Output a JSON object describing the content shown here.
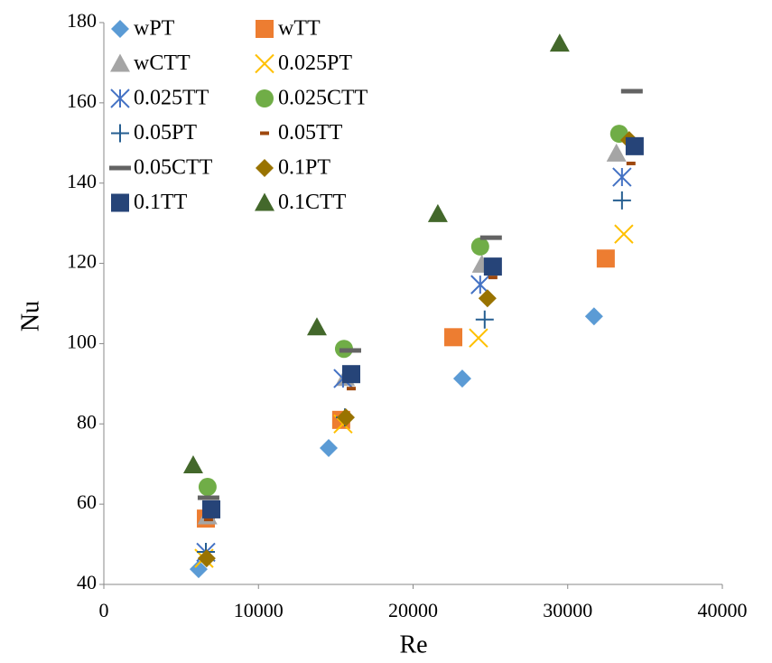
{
  "chart_data": {
    "type": "scatter",
    "x_label": "Re",
    "y_label": "Nu",
    "xlim": [
      0,
      40000
    ],
    "xticks": [
      0,
      10000,
      20000,
      30000,
      40000
    ],
    "ylim": [
      40,
      180
    ],
    "yticks": [
      40,
      60,
      80,
      100,
      120,
      140,
      160,
      180
    ],
    "grid": false,
    "legend": "upper left",
    "series": [
      {
        "name": "wPT",
        "color": "#5B9BD5",
        "marker": "diamond",
        "x": [
          6130,
          14540,
          23180,
          31700
        ],
        "values": [
          43.8,
          74,
          91.3,
          106.8
        ]
      },
      {
        "name": "wTT",
        "color": "#ED7D31",
        "marker": "square",
        "x": [
          6600,
          15350,
          22600,
          32460
        ],
        "values": [
          56.4,
          81,
          101.6,
          121.2
        ]
      },
      {
        "name": "wCTT",
        "color": "#A5A5A5",
        "marker": "triangle",
        "x": [
          6700,
          15600,
          24450,
          33150
        ],
        "values": [
          57,
          91.5,
          119.7,
          147.4
        ]
      },
      {
        "name": "0.025PT",
        "color": "#FFC000",
        "marker": "x",
        "x": [
          6480,
          15470,
          24230,
          33630
        ],
        "values": [
          46.5,
          80,
          101.4,
          127.3
        ]
      },
      {
        "name": "0.025TT",
        "color": "#4472C4",
        "marker": "asterisk",
        "x": [
          6600,
          15470,
          24340,
          33510
        ],
        "values": [
          48,
          91.3,
          114.7,
          141.5
        ]
      },
      {
        "name": "0.025CTT",
        "color": "#70AD47",
        "marker": "circle",
        "x": [
          6710,
          15530,
          24340,
          33330
        ],
        "values": [
          64.3,
          98.7,
          124.2,
          152.3
        ]
      },
      {
        "name": "0.05PT",
        "color": "#255E91",
        "marker": "plus",
        "x": [
          6600,
          15590,
          24630,
          33510
        ],
        "values": [
          48.1,
          81.6,
          106,
          135.7
        ]
      },
      {
        "name": "0.05TT",
        "color": "#9E480E",
        "marker": "dash-small",
        "x": [
          6770,
          16000,
          25160,
          34090
        ],
        "values": [
          56.2,
          88.8,
          116.5,
          144.9
        ]
      },
      {
        "name": "0.05CTT",
        "color": "#636363",
        "marker": "dash",
        "x": [
          6770,
          15940,
          25040,
          34150
        ],
        "values": [
          61.6,
          98.3,
          126.4,
          162.9
        ]
      },
      {
        "name": "0.1PT",
        "color": "#997300",
        "marker": "diamond",
        "x": [
          6650,
          15650,
          24810,
          33980
        ],
        "values": [
          46.5,
          81.6,
          111.3,
          150.7
        ]
      },
      {
        "name": "0.1TT",
        "color": "#264478",
        "marker": "square",
        "x": [
          6950,
          16000,
          25160,
          34330
        ],
        "values": [
          58.7,
          92.4,
          119.2,
          149.2
        ]
      },
      {
        "name": "0.1CTT",
        "color": "#43682B",
        "marker": "triangle",
        "x": [
          5780,
          13780,
          21600,
          29480
        ],
        "values": [
          69.7,
          104.1,
          132.3,
          174.8
        ]
      }
    ]
  }
}
